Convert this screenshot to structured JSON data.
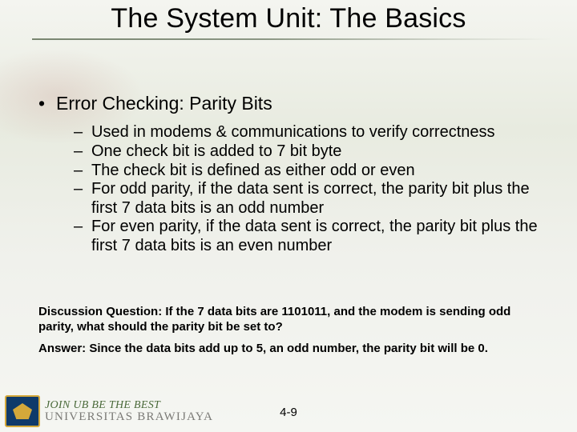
{
  "title": "The System Unit: The Basics",
  "heading": "Error Checking: Parity Bits",
  "bullets": [
    "Used in modems & communications to verify correctness",
    "One check bit is added to 7 bit byte",
    "The check bit is defined as either odd or even",
    "For odd parity, if the data sent is correct, the parity bit plus the first 7 data bits is an odd number",
    "For even parity, if the data sent is correct, the parity bit plus the first 7 data bits is an even number"
  ],
  "discussion_question": "Discussion Question: If the 7 data bits are 1101011, and the modem is sending odd parity, what should the parity bit be set to?",
  "discussion_answer": "Answer: Since the data bits add up to 5, an odd number, the parity bit will be 0.",
  "page_number": "4-9",
  "footer": {
    "tagline": "JOIN UB BE THE BEST",
    "university": "UNIVERSITAS BRAWIJAYA"
  },
  "colors": {
    "bg_top": "#f4f5f0",
    "bg_mid": "#e8ebe0",
    "underline": "#2a3c1e",
    "tagline": "#4a6a3a",
    "univ": "#7a7a76",
    "badge_bg": "#0f3a6a",
    "badge_accent": "#d4a83a"
  },
  "fontsizes": {
    "title": 34,
    "l1": 23,
    "l2": 20,
    "discussion": 15,
    "pagenum": 15
  }
}
